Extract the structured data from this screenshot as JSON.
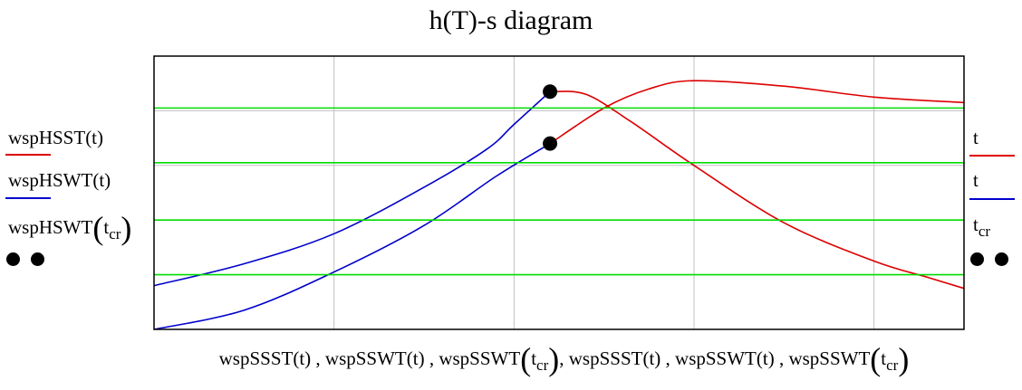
{
  "title": "h(T)-s diagram",
  "colors": {
    "red": "#dd0000",
    "blue": "#0000cc",
    "green": "#00dd00",
    "grid": "#c0c0c0",
    "dot": "#000000"
  },
  "legend_left": [
    {
      "label": "wspHSST(t)",
      "color": "#dd0000"
    },
    {
      "label": "wspHSWT(t)",
      "color": "#0000cc"
    },
    {
      "label_main": "wspHSWT",
      "label_sub": "cr"
    }
  ],
  "legend_right": [
    {
      "label": "t",
      "color": "#dd0000"
    },
    {
      "label": "t",
      "color": "#0000cc"
    },
    {
      "label_main": "t",
      "label_sub": "cr"
    }
  ],
  "xlabel": {
    "part1": "wspSSST(t) , wspSSWT(t) , wspSSWT",
    "sub1": "cr",
    "part2": ", wspSSST(t) , wspSSWT(t) , wspSSWT",
    "sub2": "cr"
  },
  "chart_data": {
    "type": "line",
    "title": "h(T)-s diagram",
    "xlim": [
      0,
      9
    ],
    "ylim": [
      0,
      10
    ],
    "grid": true,
    "x_gridlines": [
      2,
      4,
      6,
      8
    ],
    "y_gridlines": [
      2,
      4,
      6,
      8
    ],
    "series": [
      {
        "color": "#0000cc",
        "points": [
          [
            0,
            1.6
          ],
          [
            1,
            2.4
          ],
          [
            2,
            3.5
          ],
          [
            3,
            5.2
          ],
          [
            3.7,
            6.6
          ],
          [
            4,
            7.5
          ],
          [
            4.4,
            8.7
          ]
        ]
      },
      {
        "color": "#0000cc",
        "points": [
          [
            0,
            0
          ],
          [
            1,
            0.7
          ],
          [
            2,
            2.1
          ],
          [
            3,
            3.8
          ],
          [
            3.8,
            5.6
          ],
          [
            4.4,
            6.8
          ]
        ]
      },
      {
        "color": "#dd0000",
        "points": [
          [
            4.4,
            8.7
          ],
          [
            4.8,
            8.6
          ],
          [
            5.3,
            7.6
          ],
          [
            6,
            6.0
          ],
          [
            7,
            3.9
          ],
          [
            8,
            2.5
          ],
          [
            8.6,
            1.9
          ],
          [
            9,
            1.5
          ]
        ]
      },
      {
        "color": "#dd0000",
        "points": [
          [
            4.4,
            6.8
          ],
          [
            5.0,
            8.1
          ],
          [
            5.5,
            8.8
          ],
          [
            6,
            9.1
          ],
          [
            7,
            8.9
          ],
          [
            8,
            8.5
          ],
          [
            9,
            8.3
          ]
        ]
      },
      {
        "color": "#00dd00",
        "points": [
          [
            0,
            8.1
          ],
          [
            9,
            8.1
          ]
        ]
      },
      {
        "color": "#00dd00",
        "points": [
          [
            0,
            6.1
          ],
          [
            9,
            6.1
          ]
        ]
      },
      {
        "color": "#00dd00",
        "points": [
          [
            0,
            4.0
          ],
          [
            9,
            4.0
          ]
        ]
      },
      {
        "color": "#00dd00",
        "points": [
          [
            0,
            2.0
          ],
          [
            9,
            2.0
          ]
        ]
      }
    ],
    "markers": [
      [
        4.4,
        8.7
      ],
      [
        4.4,
        6.8
      ]
    ]
  }
}
